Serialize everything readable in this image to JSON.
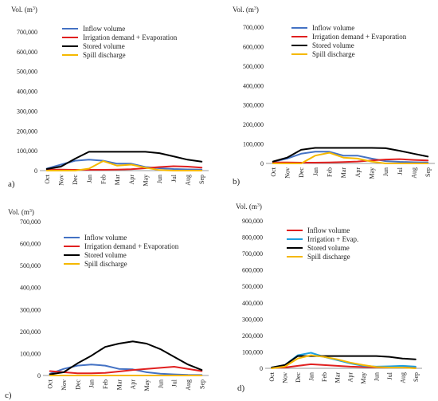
{
  "chart_data": [
    {
      "panel": "a)",
      "type": "line",
      "ylabel": "Vol. (m³)",
      "ylim": [
        0,
        700000
      ],
      "yticks": [
        "0",
        "100,000",
        "200,000",
        "300,000",
        "400,000",
        "500,000",
        "600,000",
        "700,000"
      ],
      "categories": [
        "Oct",
        "Nov",
        "Dec",
        "Jan",
        "Feb",
        "Mar",
        "Apr",
        "May",
        "Jun",
        "Jul",
        "Aug",
        "Sep"
      ],
      "legend": "top-left",
      "series": [
        {
          "name": "Inflow volume",
          "color": "#4472c4",
          "values": [
            10000,
            30000,
            50000,
            55000,
            50000,
            35000,
            35000,
            18000,
            12000,
            8000,
            6000,
            5000
          ]
        },
        {
          "name": "Irrigation demand + Evaporation",
          "color": "#e02020",
          "values": [
            5000,
            5000,
            4000,
            4000,
            4000,
            5000,
            7000,
            12000,
            18000,
            22000,
            20000,
            15000
          ]
        },
        {
          "name": "Stored volume",
          "color": "#000000",
          "values": [
            8000,
            20000,
            60000,
            95000,
            95000,
            95000,
            95000,
            95000,
            88000,
            72000,
            55000,
            45000
          ]
        },
        {
          "name": "Spill discharge",
          "color": "#f5b800",
          "values": [
            0,
            0,
            0,
            10000,
            48000,
            25000,
            30000,
            15000,
            3000,
            0,
            0,
            0
          ]
        }
      ]
    },
    {
      "panel": "b)",
      "type": "line",
      "ylabel": "Vol. (m³)",
      "ylim": [
        0,
        700000
      ],
      "yticks": [
        "0",
        "100,000",
        "200,000",
        "300,000",
        "400,000",
        "500,000",
        "600,000",
        "700,000"
      ],
      "categories": [
        "Oct",
        "Nov",
        "Dec",
        "Jan",
        "Feb",
        "Mar",
        "Apr",
        "May",
        "Jun",
        "Jul",
        "Aug",
        "Sep"
      ],
      "legend": "top-left",
      "series": [
        {
          "name": "Inflow volume",
          "color": "#4472c4",
          "values": [
            8000,
            25000,
            50000,
            60000,
            60000,
            40000,
            40000,
            25000,
            12000,
            8000,
            6000,
            5000
          ]
        },
        {
          "name": "Irrigation demand + Evaporation",
          "color": "#e02020",
          "values": [
            5000,
            5000,
            4000,
            4000,
            5000,
            7000,
            10000,
            15000,
            20000,
            22000,
            18000,
            15000
          ]
        },
        {
          "name": "Stored volume",
          "color": "#000000",
          "values": [
            10000,
            30000,
            70000,
            80000,
            80000,
            80000,
            80000,
            80000,
            78000,
            65000,
            50000,
            35000
          ]
        },
        {
          "name": "Spill discharge",
          "color": "#f5b800",
          "values": [
            0,
            0,
            0,
            40000,
            55000,
            30000,
            25000,
            10000,
            0,
            0,
            0,
            0
          ]
        }
      ]
    },
    {
      "panel": "c)",
      "type": "line",
      "ylabel": "Vol. (m³)",
      "ylim": [
        0,
        700000
      ],
      "yticks": [
        "0",
        "100,000",
        "200,000",
        "300,000",
        "400,000",
        "500,000",
        "600,000",
        "700,000"
      ],
      "categories": [
        "Oct",
        "Nov",
        "Dec",
        "Jan",
        "Feb",
        "Mar",
        "Apr",
        "May",
        "Jun",
        "Jul",
        "Aug",
        "Sep"
      ],
      "legend": "top-left",
      "series": [
        {
          "name": "Inflow volume",
          "color": "#4472c4",
          "values": [
            8000,
            30000,
            45000,
            50000,
            45000,
            30000,
            28000,
            15000,
            8000,
            5000,
            3000,
            2000
          ]
        },
        {
          "name": "Irrigation demand + Evaporation",
          "color": "#e02020",
          "values": [
            20000,
            15000,
            10000,
            10000,
            12000,
            18000,
            25000,
            30000,
            35000,
            40000,
            30000,
            20000
          ]
        },
        {
          "name": "Stored volume",
          "color": "#000000",
          "values": [
            5000,
            15000,
            55000,
            90000,
            130000,
            145000,
            155000,
            145000,
            120000,
            85000,
            50000,
            25000
          ]
        },
        {
          "name": "Spill discharge",
          "color": "#f5b800",
          "values": [
            0,
            0,
            0,
            0,
            0,
            0,
            0,
            0,
            0,
            0,
            0,
            0
          ]
        }
      ]
    },
    {
      "panel": "d)",
      "type": "line",
      "ylabel": "Vol. (m³)",
      "ylim": [
        0,
        900000
      ],
      "yticks": [
        "0",
        "100,000",
        "200,000",
        "300,000",
        "400,000",
        "500,000",
        "600,000",
        "700,000",
        "800,000",
        "900,000"
      ],
      "categories": [
        "Oct",
        "Nov",
        "Dec",
        "Jan",
        "Feb",
        "Mar",
        "Apr",
        "May",
        "Jun",
        "Jul",
        "Aug",
        "Sep"
      ],
      "legend": "top-left",
      "series": [
        {
          "name": "Inflow volume",
          "color": "#e02020",
          "values": [
            3000,
            5000,
            15000,
            25000,
            20000,
            15000,
            10000,
            8000,
            6000,
            5000,
            5000,
            5000
          ]
        },
        {
          "name": "Irrigation + Evap.",
          "color": "#1ea0e0",
          "values": [
            5000,
            20000,
            80000,
            95000,
            70000,
            50000,
            30000,
            15000,
            10000,
            12000,
            15000,
            10000
          ]
        },
        {
          "name": "Stored volume",
          "color": "#000000",
          "values": [
            5000,
            20000,
            75000,
            75000,
            75000,
            75000,
            75000,
            75000,
            75000,
            70000,
            60000,
            55000
          ]
        },
        {
          "name": "Spill discharge",
          "color": "#f5b800",
          "values": [
            0,
            10000,
            60000,
            80000,
            70000,
            55000,
            35000,
            20000,
            8000,
            5000,
            5000,
            0
          ]
        }
      ]
    }
  ]
}
